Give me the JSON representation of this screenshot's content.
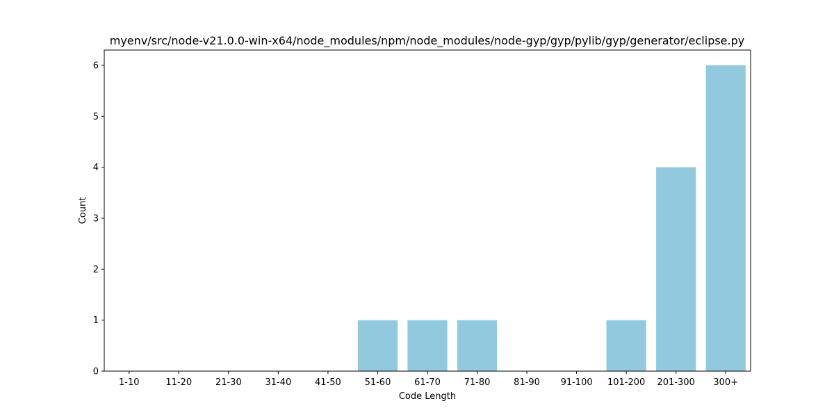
{
  "chart_data": {
    "type": "bar",
    "title": "myenv/src/node-v21.0.0-win-x64/node_modules/npm/node_modules/node-gyp/gyp/pylib/gyp/generator/eclipse.py",
    "xlabel": "Code Length",
    "ylabel": "Count",
    "categories": [
      "1-10",
      "11-20",
      "21-30",
      "31-40",
      "41-50",
      "51-60",
      "61-70",
      "71-80",
      "81-90",
      "91-100",
      "101-200",
      "201-300",
      "300+"
    ],
    "values": [
      0,
      0,
      0,
      0,
      0,
      1,
      1,
      1,
      0,
      0,
      1,
      4,
      6
    ],
    "ylim": [
      0,
      6.3
    ],
    "yticks": [
      0,
      1,
      2,
      3,
      4,
      5,
      6
    ],
    "bar_color": "#92c9de",
    "grid": false,
    "legend": "none"
  }
}
